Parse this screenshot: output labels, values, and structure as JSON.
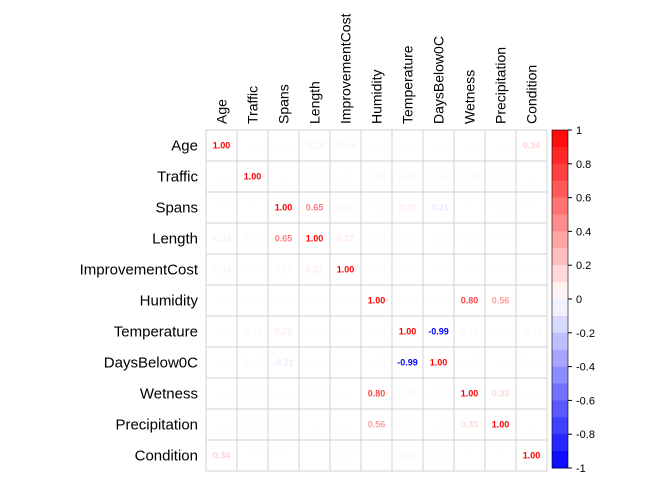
{
  "chart_data": {
    "type": "heatmap",
    "title": "",
    "variables": [
      "Age",
      "Traffic",
      "Spans",
      "Length",
      "ImprovementCost",
      "Humidity",
      "Temperature",
      "DaysBelow0C",
      "Wetness",
      "Precipitation",
      "Condition"
    ],
    "values": [
      [
        1.0,
        0.02,
        -0.03,
        -0.16,
        -0.14,
        0.03,
        0.02,
        -0.02,
        0.01,
        0.01,
        0.34
      ],
      [
        0.02,
        1.0,
        0.01,
        0.12,
        0.01,
        -0.08,
        -0.11,
        0.12,
        -0.11,
        -0.06,
        -0.03
      ],
      [
        -0.03,
        0.01,
        1.0,
        0.65,
        0.14,
        0.01,
        0.21,
        -0.21,
        0.01,
        0.06,
        0.02
      ],
      [
        -0.16,
        0.12,
        0.65,
        1.0,
        0.22,
        -0.06,
        0.06,
        -0.05,
        -0.05,
        0.02,
        0.0
      ],
      [
        -0.14,
        0.01,
        0.14,
        0.22,
        1.0,
        -0.04,
        0.01,
        -0.01,
        -0.02,
        -0.02,
        -0.04
      ],
      [
        0.03,
        -0.08,
        0.01,
        -0.06,
        -0.04,
        1.0,
        -0.04,
        0.08,
        0.8,
        0.56,
        0.0
      ],
      [
        0.02,
        -0.11,
        0.21,
        0.06,
        0.01,
        -0.04,
        1.0,
        -0.99,
        0.12,
        0.06,
        -0.11
      ],
      [
        -0.02,
        0.12,
        -0.21,
        -0.05,
        -0.01,
        0.08,
        -0.99,
        1.0,
        -0.07,
        -0.02,
        0.11
      ],
      [
        0.01,
        -0.11,
        0.01,
        -0.05,
        -0.02,
        0.8,
        0.12,
        -0.07,
        1.0,
        0.33,
        0.01
      ],
      [
        0.01,
        -0.06,
        0.06,
        0.02,
        -0.02,
        0.56,
        0.06,
        -0.02,
        0.33,
        1.0,
        0.01
      ],
      [
        0.34,
        -0.03,
        0.02,
        0.0,
        -0.04,
        0.0,
        -0.11,
        0.11,
        0.01,
        0.01,
        1.0
      ]
    ],
    "color_scale": {
      "range": [
        -1,
        1
      ],
      "low_color": "#0000FF",
      "mid_color": "#FFFFFF",
      "high_color": "#FF0000",
      "tick_labels": [
        "1",
        "0.8",
        "0.6",
        "0.4",
        "0.2",
        "0",
        "-0.2",
        "-0.4",
        "-0.6",
        "-0.8",
        "-1"
      ]
    },
    "grid": true,
    "legend_position": "right"
  }
}
